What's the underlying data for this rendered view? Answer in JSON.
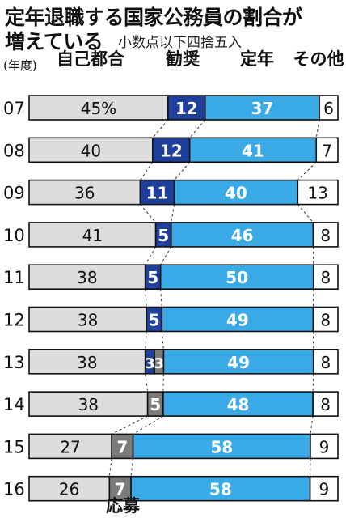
{
  "title_line1": "定年退職する国家公務員の割合が",
  "title_line2": "増えている",
  "subtitle": "小数点以下四捨五入",
  "colors": {
    "self": "#dddddd",
    "kansho": "#1e3f9c",
    "teinen": "#3aaae6",
    "other": "#ffffff",
    "oubo": "#7b7b7b",
    "outline": "#111111"
  },
  "chart_data": {
    "type": "bar",
    "stacked": true,
    "orientation": "horizontal",
    "unit_label": "(年度)",
    "categories": [
      "07",
      "08",
      "09",
      "10",
      "11",
      "12",
      "13",
      "14",
      "15",
      "16"
    ],
    "series": [
      {
        "name": "自己都合",
        "values": [
          45,
          40,
          36,
          41,
          38,
          38,
          38,
          38,
          27,
          26
        ],
        "labels": [
          "45%",
          "40",
          "36",
          "41",
          "38",
          "38",
          "38",
          "38",
          "27",
          "26"
        ]
      },
      {
        "name": "勧奨",
        "values": [
          12,
          12,
          11,
          5,
          5,
          5,
          3,
          0,
          0,
          0
        ],
        "labels": [
          "12",
          "12",
          "11",
          "5",
          "5",
          "5",
          "3",
          "",
          "",
          ""
        ]
      },
      {
        "name": "応募",
        "values": [
          0,
          0,
          0,
          0,
          0,
          0,
          3,
          5,
          7,
          7
        ],
        "labels": [
          "",
          "",
          "",
          "",
          "",
          "",
          "3",
          "5",
          "7",
          "7"
        ]
      },
      {
        "name": "定年",
        "values": [
          37,
          41,
          40,
          46,
          50,
          49,
          49,
          48,
          58,
          58
        ],
        "labels": [
          "37",
          "41",
          "40",
          "46",
          "50",
          "49",
          "49",
          "48",
          "58",
          "58"
        ]
      },
      {
        "name": "その他",
        "values": [
          6,
          7,
          13,
          8,
          8,
          8,
          8,
          8,
          9,
          9
        ],
        "labels": [
          "6",
          "7",
          "13",
          "8",
          "8",
          "8",
          "8",
          "8",
          "9",
          "9"
        ]
      }
    ],
    "xlim": [
      0,
      100
    ]
  }
}
